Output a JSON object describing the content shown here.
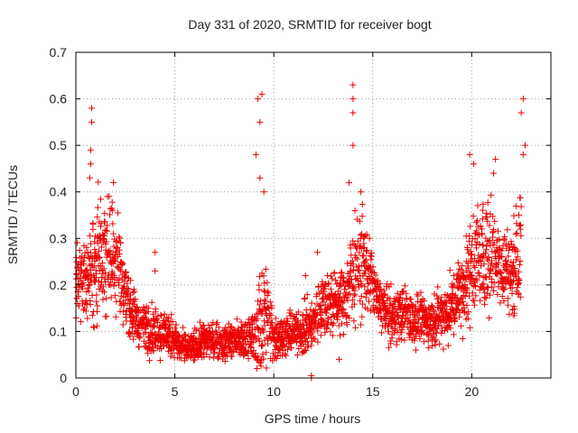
{
  "chart_data": {
    "type": "scatter",
    "title": "Day 331 of 2020, SRMTID for receiver bogt",
    "xlabel": "GPS time / hours",
    "ylabel": "SRMTID / TECUs",
    "xlim": [
      0,
      24
    ],
    "ylim": [
      0,
      0.7
    ],
    "x_ticks": [
      0,
      5,
      10,
      15,
      20
    ],
    "x_tick_labels": [
      "0",
      "5",
      "10",
      "15",
      "20"
    ],
    "y_ticks": [
      0,
      0.1,
      0.2,
      0.3,
      0.4,
      0.5,
      0.6,
      0.7
    ],
    "y_tick_labels": [
      "0",
      "0.1",
      "0.2",
      "0.3",
      "0.4",
      "0.5",
      "0.6",
      "0.7"
    ],
    "grid": true,
    "marker": "+",
    "color": "#ee0000",
    "envelope": {
      "hours": [
        0,
        0.5,
        1,
        1.5,
        2,
        2.5,
        3,
        3.5,
        4,
        4.5,
        5,
        5.5,
        6,
        6.5,
        7,
        7.5,
        8,
        8.5,
        9,
        9.5,
        10,
        10.5,
        11,
        11.5,
        12,
        12.5,
        13,
        13.5,
        14,
        14.5,
        15,
        15.5,
        16,
        16.5,
        17,
        17.5,
        18,
        18.5,
        19,
        19.5,
        20,
        20.5,
        21,
        21.5,
        22,
        22.5
      ],
      "median": [
        0.2,
        0.22,
        0.24,
        0.26,
        0.27,
        0.18,
        0.13,
        0.11,
        0.1,
        0.1,
        0.08,
        0.06,
        0.07,
        0.08,
        0.08,
        0.08,
        0.08,
        0.08,
        0.09,
        0.13,
        0.09,
        0.09,
        0.1,
        0.1,
        0.12,
        0.16,
        0.16,
        0.17,
        0.22,
        0.25,
        0.2,
        0.15,
        0.13,
        0.15,
        0.13,
        0.12,
        0.12,
        0.14,
        0.16,
        0.19,
        0.24,
        0.26,
        0.27,
        0.24,
        0.23,
        0.27
      ],
      "spread": [
        0.06,
        0.08,
        0.1,
        0.08,
        0.09,
        0.05,
        0.04,
        0.04,
        0.04,
        0.04,
        0.03,
        0.025,
        0.025,
        0.03,
        0.03,
        0.03,
        0.03,
        0.03,
        0.04,
        0.12,
        0.04,
        0.03,
        0.03,
        0.04,
        0.04,
        0.05,
        0.05,
        0.05,
        0.1,
        0.07,
        0.05,
        0.04,
        0.04,
        0.05,
        0.04,
        0.04,
        0.04,
        0.05,
        0.05,
        0.06,
        0.09,
        0.08,
        0.08,
        0.07,
        0.06,
        0.1
      ]
    },
    "peaks": [
      {
        "x": 0.8,
        "y": 0.58
      },
      {
        "x": 0.8,
        "y": 0.55
      },
      {
        "x": 0.75,
        "y": 0.49
      },
      {
        "x": 0.75,
        "y": 0.46
      },
      {
        "x": 0.7,
        "y": 0.43
      },
      {
        "x": 1.6,
        "y": 0.39
      },
      {
        "x": 1.9,
        "y": 0.42
      },
      {
        "x": 4.0,
        "y": 0.27
      },
      {
        "x": 4.0,
        "y": 0.23
      },
      {
        "x": 9.2,
        "y": 0.6
      },
      {
        "x": 9.4,
        "y": 0.61
      },
      {
        "x": 9.3,
        "y": 0.55
      },
      {
        "x": 9.1,
        "y": 0.48
      },
      {
        "x": 9.3,
        "y": 0.43
      },
      {
        "x": 9.5,
        "y": 0.4
      },
      {
        "x": 11.6,
        "y": 0.22
      },
      {
        "x": 11.9,
        "y": 0.0
      },
      {
        "x": 11.9,
        "y": 0.005
      },
      {
        "x": 12.2,
        "y": 0.27
      },
      {
        "x": 13.3,
        "y": 0.04
      },
      {
        "x": 14.0,
        "y": 0.63
      },
      {
        "x": 14.0,
        "y": 0.6
      },
      {
        "x": 14.0,
        "y": 0.57
      },
      {
        "x": 14.0,
        "y": 0.5
      },
      {
        "x": 13.8,
        "y": 0.42
      },
      {
        "x": 14.4,
        "y": 0.4
      },
      {
        "x": 19.9,
        "y": 0.48
      },
      {
        "x": 20.1,
        "y": 0.46
      },
      {
        "x": 21.2,
        "y": 0.47
      },
      {
        "x": 21.1,
        "y": 0.44
      },
      {
        "x": 22.6,
        "y": 0.6
      },
      {
        "x": 22.5,
        "y": 0.57
      },
      {
        "x": 22.7,
        "y": 0.5
      },
      {
        "x": 22.6,
        "y": 0.48
      }
    ]
  }
}
